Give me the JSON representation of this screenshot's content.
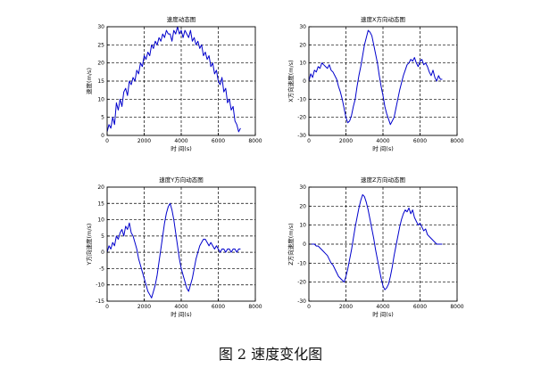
{
  "caption": "图 2 速度变化图",
  "chart_data": [
    {
      "type": "line",
      "title": "速度动态图",
      "xlabel": "时 间(s)",
      "ylabel": "速度(m/s)",
      "xlim": [
        0,
        8000
      ],
      "ylim": [
        0,
        30
      ],
      "xticks": [
        0,
        2000,
        4000,
        6000,
        8000
      ],
      "yticks": [
        0,
        5,
        10,
        15,
        20,
        25,
        30
      ],
      "grid": true,
      "line_color": "#0000cc",
      "series": [
        {
          "x": [
            0,
            100,
            200,
            300,
            400,
            500,
            600,
            700,
            800,
            900,
            1000,
            1100,
            1200,
            1300,
            1400,
            1500,
            1600,
            1700,
            1800,
            1900,
            2000,
            2100,
            2200,
            2300,
            2400,
            2500,
            2600,
            2700,
            2800,
            2900,
            3000,
            3100,
            3200,
            3300,
            3400,
            3500,
            3600,
            3700,
            3800,
            3900,
            4000,
            4100,
            4200,
            4300,
            4400,
            4500,
            4600,
            4700,
            4800,
            4900,
            5000,
            5100,
            5200,
            5300,
            5400,
            5500,
            5600,
            5700,
            5800,
            5900,
            6000,
            6100,
            6200,
            6300,
            6400,
            6500,
            6600,
            6700,
            6800,
            6900,
            7000,
            7100,
            7200
          ],
          "y": [
            1,
            3,
            2,
            5,
            3,
            9,
            7,
            10,
            8,
            12,
            13,
            11,
            15,
            14,
            16,
            15,
            18,
            17,
            20,
            19,
            22,
            21,
            23,
            22,
            25,
            24,
            26,
            25,
            27,
            26,
            28,
            27,
            29,
            28,
            28,
            26,
            29,
            28,
            30,
            28,
            29,
            27,
            29,
            28,
            27,
            29,
            26,
            27,
            25,
            26,
            24,
            25,
            22,
            23,
            21,
            22,
            19,
            20,
            17,
            18,
            15,
            14,
            16,
            12,
            13,
            9,
            10,
            7,
            8,
            4,
            3,
            1,
            2
          ]
        }
      ]
    },
    {
      "type": "line",
      "title": "速度X方向动态图",
      "xlabel": "时 间(s)",
      "ylabel": "X方向速度(m/s)",
      "xlim": [
        0,
        8000
      ],
      "ylim": [
        -30,
        30
      ],
      "xticks": [
        0,
        2000,
        4000,
        6000,
        8000
      ],
      "yticks": [
        -30,
        -20,
        -10,
        0,
        10,
        20,
        30
      ],
      "grid": true,
      "line_color": "#0000cc",
      "series": [
        {
          "x": [
            0,
            100,
            200,
            300,
            400,
            500,
            600,
            700,
            800,
            900,
            1000,
            1100,
            1200,
            1300,
            1400,
            1500,
            1600,
            1700,
            1800,
            1900,
            2000,
            2100,
            2200,
            2300,
            2400,
            2500,
            2600,
            2700,
            2800,
            2900,
            3000,
            3100,
            3200,
            3300,
            3400,
            3500,
            3600,
            3700,
            3800,
            3900,
            4000,
            4100,
            4200,
            4300,
            4400,
            4500,
            4600,
            4700,
            4800,
            4900,
            5000,
            5100,
            5200,
            5300,
            5400,
            5500,
            5600,
            5700,
            5800,
            5900,
            6000,
            6100,
            6200,
            6300,
            6400,
            6500,
            6600,
            6700,
            6800,
            6900,
            7000,
            7100,
            7200
          ],
          "y": [
            0,
            4,
            2,
            6,
            5,
            8,
            7,
            10,
            9,
            8,
            7,
            9,
            6,
            5,
            3,
            1,
            -3,
            -6,
            -10,
            -15,
            -20,
            -23,
            -22,
            -19,
            -14,
            -10,
            -3,
            3,
            8,
            14,
            20,
            24,
            28,
            27,
            25,
            20,
            15,
            10,
            3,
            -3,
            -8,
            -14,
            -18,
            -21,
            -24,
            -22,
            -20,
            -15,
            -10,
            -5,
            -1,
            3,
            6,
            9,
            10,
            12,
            11,
            13,
            10,
            8,
            11,
            12,
            9,
            10,
            8,
            5,
            3,
            6,
            2,
            0,
            3,
            1,
            1
          ]
        }
      ]
    },
    {
      "type": "line",
      "title": "速度Y方向动态图",
      "xlabel": "时 间(s)",
      "ylabel": "Y方向速度(m/s)",
      "xlim": [
        0,
        8000
      ],
      "ylim": [
        -15,
        20
      ],
      "xticks": [
        0,
        2000,
        4000,
        6000,
        8000
      ],
      "yticks": [
        -15,
        -10,
        -5,
        0,
        5,
        10,
        15,
        20
      ],
      "grid": true,
      "line_color": "#0000cc",
      "series": [
        {
          "x": [
            0,
            100,
            200,
            300,
            400,
            500,
            600,
            700,
            800,
            900,
            1000,
            1100,
            1200,
            1300,
            1400,
            1500,
            1600,
            1700,
            1800,
            1900,
            2000,
            2100,
            2200,
            2300,
            2400,
            2500,
            2600,
            2700,
            2800,
            2900,
            3000,
            3100,
            3200,
            3300,
            3400,
            3500,
            3600,
            3700,
            3800,
            3900,
            4000,
            4100,
            4200,
            4300,
            4400,
            4500,
            4600,
            4700,
            4800,
            4900,
            5000,
            5100,
            5200,
            5300,
            5400,
            5500,
            5600,
            5700,
            5800,
            5900,
            6000,
            6100,
            6200,
            6300,
            6400,
            6500,
            6600,
            6700,
            6800,
            6900,
            7000,
            7100,
            7200
          ],
          "y": [
            0,
            2,
            1,
            3,
            2,
            5,
            4,
            6,
            7,
            5,
            8,
            7,
            9,
            6,
            5,
            3,
            1,
            -2,
            -4,
            -6,
            -8,
            -10,
            -12,
            -13,
            -14,
            -12,
            -10,
            -7,
            -3,
            1,
            5,
            9,
            12,
            14,
            15,
            13,
            10,
            6,
            2,
            -2,
            -5,
            -7,
            -9,
            -11,
            -12,
            -10,
            -8,
            -5,
            -2,
            0,
            2,
            3,
            4,
            4,
            3,
            2,
            3,
            2,
            1,
            2,
            1,
            0,
            1,
            1,
            0,
            1,
            1,
            0,
            1,
            1,
            0,
            1,
            1
          ]
        }
      ]
    },
    {
      "type": "line",
      "title": "速度Z方向动态图",
      "xlabel": "时 间(s)",
      "ylabel": "Z方向速度(m/s)",
      "xlim": [
        0,
        8000
      ],
      "ylim": [
        -30,
        30
      ],
      "xticks": [
        0,
        2000,
        4000,
        6000,
        8000
      ],
      "yticks": [
        -30,
        -20,
        -10,
        0,
        10,
        20,
        30
      ],
      "grid": true,
      "line_color": "#0000cc",
      "series": [
        {
          "x": [
            0,
            100,
            200,
            300,
            400,
            500,
            600,
            700,
            800,
            900,
            1000,
            1100,
            1200,
            1300,
            1400,
            1500,
            1600,
            1700,
            1800,
            1900,
            2000,
            2100,
            2200,
            2300,
            2400,
            2500,
            2600,
            2700,
            2800,
            2900,
            3000,
            3100,
            3200,
            3300,
            3400,
            3500,
            3600,
            3700,
            3800,
            3900,
            4000,
            4100,
            4200,
            4300,
            4400,
            4500,
            4600,
            4700,
            4800,
            4900,
            5000,
            5100,
            5200,
            5300,
            5400,
            5500,
            5600,
            5700,
            5800,
            5900,
            6000,
            6100,
            6200,
            6300,
            6400,
            6500,
            6600,
            6700,
            6800,
            6900,
            7000,
            7100,
            7200
          ],
          "y": [
            0,
            0,
            0,
            0,
            -1,
            -1,
            -2,
            -3,
            -4,
            -5,
            -6,
            -8,
            -10,
            -11,
            -13,
            -15,
            -17,
            -18,
            -19,
            -20,
            -17,
            -13,
            -8,
            -3,
            3,
            9,
            14,
            19,
            23,
            26,
            25,
            22,
            18,
            13,
            8,
            3,
            -3,
            -8,
            -13,
            -18,
            -22,
            -24,
            -23,
            -21,
            -17,
            -12,
            -6,
            -1,
            4,
            9,
            13,
            16,
            18,
            17,
            19,
            16,
            18,
            14,
            12,
            10,
            11,
            9,
            7,
            8,
            5,
            4,
            3,
            2,
            1,
            0,
            0,
            0,
            0
          ]
        }
      ]
    }
  ]
}
